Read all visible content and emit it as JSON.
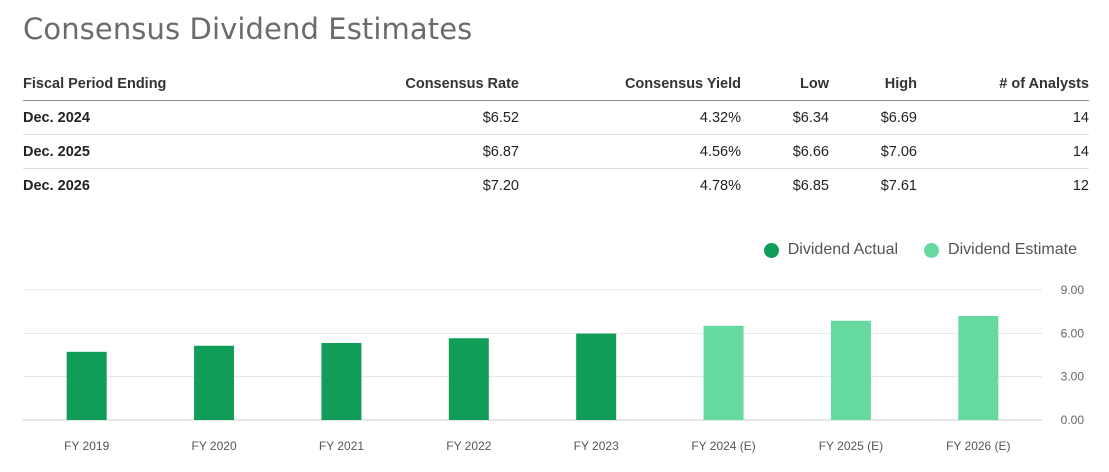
{
  "title": "Consensus Dividend Estimates",
  "table": {
    "headers": [
      "Fiscal Period Ending",
      "Consensus Rate",
      "Consensus Yield",
      "Low",
      "High",
      "# of Analysts"
    ],
    "rows": [
      [
        "Dec. 2024",
        "$6.52",
        "4.32%",
        "$6.34",
        "$6.69",
        "14"
      ],
      [
        "Dec. 2025",
        "$6.87",
        "4.56%",
        "$6.66",
        "$7.06",
        "14"
      ],
      [
        "Dec. 2026",
        "$7.20",
        "4.78%",
        "$6.85",
        "$7.61",
        "12"
      ]
    ]
  },
  "legend": {
    "actual_label": "Dividend Actual",
    "estimate_label": "Dividend Estimate"
  },
  "colors": {
    "actual": "#0f9d58",
    "estimate": "#66d9a0"
  },
  "chart_data": {
    "type": "bar",
    "categories": [
      "FY 2019",
      "FY 2020",
      "FY 2021",
      "FY 2022",
      "FY 2023",
      "FY 2024 (E)",
      "FY 2025 (E)",
      "FY 2026 (E)"
    ],
    "series": [
      {
        "name": "Dividend Actual",
        "values": [
          4.72,
          5.14,
          5.33,
          5.66,
          5.98,
          null,
          null,
          null
        ]
      },
      {
        "name": "Dividend Estimate",
        "values": [
          null,
          null,
          null,
          null,
          null,
          6.52,
          6.87,
          7.2
        ]
      }
    ],
    "yticks": [
      "0.00",
      "3.00",
      "6.00",
      "9.00"
    ],
    "ylim": [
      0,
      9
    ],
    "grid": true,
    "legend_position": "top-right"
  }
}
